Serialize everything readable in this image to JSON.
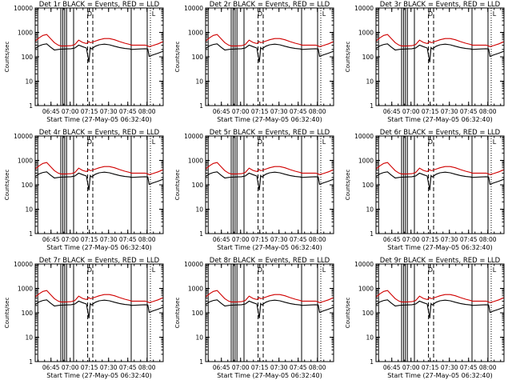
{
  "page": {
    "panel_titles": [
      "Det 1r BLACK = Events, RED = LLD",
      "Det 2r BLACK = Events, RED = LLD",
      "Det 3r BLACK = Events, RED = LLD",
      "Det 4r BLACK = Events, RED = LLD",
      "Det 5r BLACK = Events, RED = LLD",
      "Det 6r BLACK = Events, RED = LLD",
      "Det 7r BLACK = Events, RED = LLD",
      "Det 8r BLACK = Events, RED = LLD",
      "Det 9r BLACK = Events, RED = LLD"
    ],
    "xlabel": "Start Time (27-May-05 06:32:40)",
    "ylabel": "Counts/sec",
    "colors": {
      "events": "#000000",
      "lld": "#d00000",
      "frame": "#000000"
    }
  },
  "chart_data": {
    "type": "line",
    "panels": 9,
    "x_unit": "minutes after 06:32:40",
    "xlim": [
      0,
      100
    ],
    "x_ticks": [
      12.33,
      27.33,
      42.33,
      57.33,
      72.33,
      87.33
    ],
    "x_tick_labels": [
      "06:45",
      "07:00",
      "07:15",
      "07:30",
      "07:45",
      "08:00"
    ],
    "y_scale": "log",
    "ylim": [
      1,
      10000
    ],
    "y_ticks": [
      1,
      10,
      100,
      1000,
      10000
    ],
    "y_tick_labels": [
      "1",
      "10",
      "100",
      "1000",
      "10000"
    ],
    "markers": {
      "solid": [
        2.0,
        20.0,
        21.5,
        23.0,
        24.5,
        30.0,
        75.0,
        87.5
      ],
      "dashed": [
        41.0,
        45.0
      ],
      "dotted": [
        90.0
      ],
      "labels": [
        {
          "text": "D",
          "x": 42.5
        },
        {
          "text": "L",
          "x": 92.5
        }
      ]
    },
    "series": [
      {
        "name": "Events",
        "color": "#000000",
        "x": [
          0,
          3,
          6,
          9,
          12,
          15,
          18,
          20,
          24,
          28,
          31,
          34,
          37,
          40,
          42,
          43,
          44,
          47,
          50,
          54,
          58,
          62,
          66,
          70,
          74,
          75,
          78,
          82,
          86,
          88,
          89,
          92,
          96,
          100
        ],
        "y": [
          220,
          280,
          320,
          340,
          250,
          190,
          200,
          205,
          210,
          215,
          230,
          300,
          260,
          230,
          60,
          240,
          210,
          270,
          310,
          330,
          310,
          270,
          240,
          220,
          210,
          200,
          205,
          210,
          215,
          210,
          105,
          120,
          140,
          170
        ]
      },
      {
        "name": "LLD",
        "color": "#d00000",
        "x": [
          0,
          3,
          6,
          9,
          12,
          15,
          18,
          20,
          24,
          28,
          31,
          34,
          37,
          40,
          42,
          43,
          44,
          47,
          50,
          54,
          58,
          62,
          66,
          70,
          74,
          75,
          78,
          82,
          86,
          88,
          89,
          92,
          96,
          100
        ],
        "y": [
          440,
          600,
          750,
          820,
          560,
          380,
          300,
          280,
          280,
          285,
          320,
          480,
          390,
          350,
          420,
          380,
          390,
          440,
          500,
          560,
          560,
          500,
          420,
          360,
          320,
          300,
          300,
          300,
          300,
          280,
          260,
          290,
          340,
          420
        ]
      }
    ]
  }
}
